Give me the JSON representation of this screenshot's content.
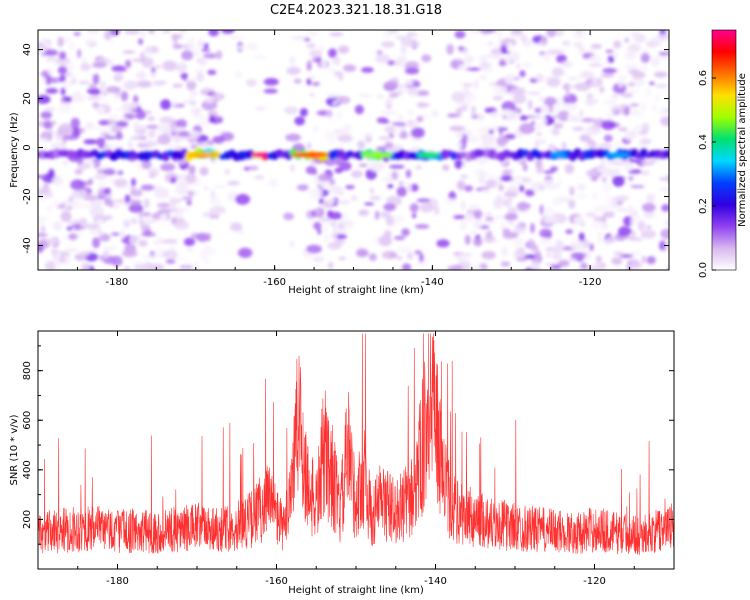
{
  "figure_title": "C2E4.2023.321.18.31.G18",
  "chart_data": [
    {
      "type": "heatmap",
      "xlabel": "Height of straight line (km)",
      "ylabel": "Frequency (Hz)",
      "xlim": [
        -190,
        -110
      ],
      "ylim": [
        -50,
        48
      ],
      "x_ticks": [
        -180,
        -160,
        -140,
        -120
      ],
      "y_ticks": [
        -40,
        -20,
        0,
        20,
        40
      ],
      "colorbar": {
        "label": "Normalized spectral amplitude",
        "range": [
          0,
          0.75
        ],
        "ticks": [
          0.0,
          0.2,
          0.4,
          0.6
        ],
        "colors": [
          "#ffffff",
          "#d8b8f0",
          "#9040f0",
          "#3000e0",
          "#0040ff",
          "#00d8ff",
          "#00e070",
          "#a0ff00",
          "#ffe000",
          "#ff7000",
          "#ff0000",
          "#ff0090"
        ]
      },
      "band": {
        "center_frequency": -3,
        "strong_segments": [
          [
            -171,
            -167,
            0.55
          ],
          [
            -163,
            -161,
            0.72
          ],
          [
            -158,
            -153,
            0.6
          ],
          [
            -149,
            -145,
            0.45
          ],
          [
            -142,
            -139,
            0.4
          ],
          [
            -125,
            -123,
            0.3
          ],
          [
            -118,
            -115,
            0.3
          ]
        ]
      },
      "grid": false
    },
    {
      "type": "line",
      "xlabel": "Height of straight line (km)",
      "ylabel": "SNR (10 * v/v)",
      "xlim": [
        -190,
        -110
      ],
      "ylim": [
        0,
        960
      ],
      "x_ticks": [
        -180,
        -160,
        -140,
        -120
      ],
      "y_ticks": [
        200,
        400,
        600,
        800
      ],
      "series": [
        {
          "color": "#ff3030",
          "x": [
            -190,
            -185,
            -180,
            -175,
            -170,
            -166,
            -163,
            -161,
            -159,
            -157.2,
            -156,
            -155,
            -154,
            -153,
            -152,
            -151,
            -150,
            -149,
            -148,
            -147,
            -146,
            -145,
            -144,
            -143,
            -142,
            -141,
            -140,
            -139,
            -138,
            -137,
            -135,
            -132,
            -130,
            -128,
            -125,
            -122,
            -120,
            -117,
            -114,
            -110
          ],
          "y": [
            170,
            190,
            185,
            175,
            200,
            190,
            240,
            330,
            180,
            700,
            380,
            300,
            560,
            450,
            260,
            560,
            300,
            450,
            230,
            330,
            300,
            270,
            300,
            340,
            500,
            700,
            720,
            420,
            300,
            260,
            240,
            210,
            200,
            190,
            180,
            170,
            190,
            170,
            160,
            200
          ]
        }
      ],
      "grid": false
    }
  ]
}
